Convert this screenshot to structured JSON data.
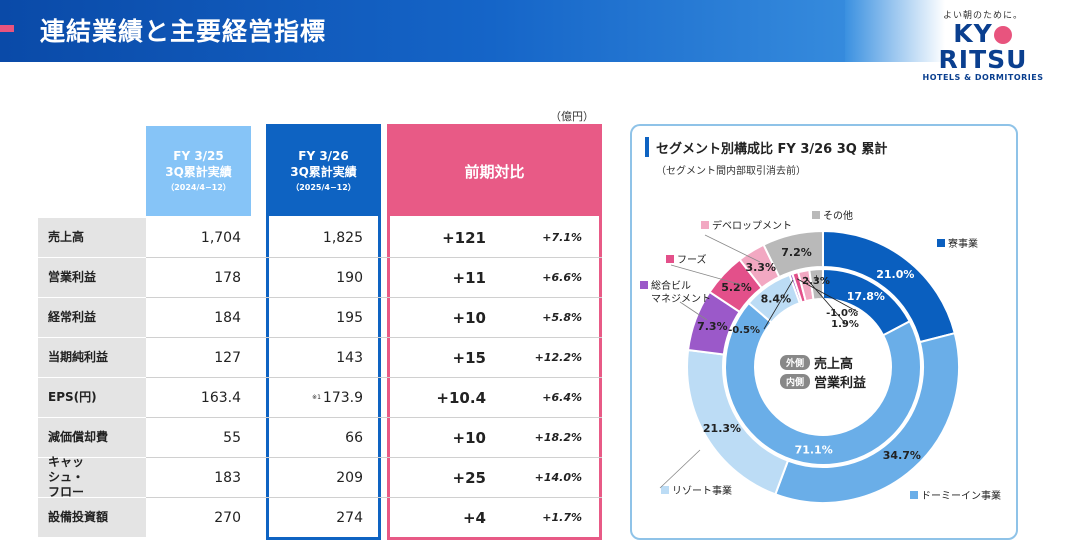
{
  "header": {
    "title": "連結業績と主要経営指標"
  },
  "logo": {
    "tagline": "よい朝のために。",
    "brand_pre": "KY",
    "brand_post": "RITSU",
    "sub": "HOTELS & DORMITORIES"
  },
  "unit": "（億円）",
  "columns": {
    "prev": {
      "l1": "FY 3/25",
      "l2": "3Q累計実績",
      "l3": "（2024/4−12）"
    },
    "cur": {
      "l1": "FY 3/26",
      "l2": "3Q累計実績",
      "l3": "（2025/4−12）"
    },
    "diff": {
      "l1": "前期対比"
    }
  },
  "rows": [
    {
      "label": "売上高",
      "prev": "1,704",
      "cur": "1,825",
      "diff": "+121",
      "pct": "+7.1%"
    },
    {
      "label": "営業利益",
      "prev": "178",
      "cur": "190",
      "diff": "+11",
      "pct": "+6.6%"
    },
    {
      "label": "経常利益",
      "prev": "184",
      "cur": "195",
      "diff": "+10",
      "pct": "+5.8%"
    },
    {
      "label": "当期純利益",
      "prev": "127",
      "cur": "143",
      "diff": "+15",
      "pct": "+12.2%"
    },
    {
      "label": "EPS(円)",
      "prev": "163.4",
      "cur": "173.9",
      "diff": "+10.4",
      "pct": "+6.4%"
    },
    {
      "label": "減価償却費",
      "prev": "55",
      "cur": "66",
      "diff": "+10",
      "pct": "+18.2%"
    },
    {
      "label": "キャッシュ・フロー",
      "prev": "183",
      "cur": "209",
      "diff": "+25",
      "pct": "+14.0%"
    },
    {
      "label": "設備投資額",
      "prev": "270",
      "cur": "274",
      "diff": "+4",
      "pct": "+1.7%"
    }
  ],
  "notes": {
    "eps": "※1",
    "cf": "※2"
  },
  "chart_data": {
    "type": "pie",
    "title": "セグメント別構成比 FY 3/26 3Q 累計",
    "subtitle": "（セグメント間内部取引消去前）",
    "center": {
      "outer_tag": "外側",
      "outer_label": "売上高",
      "inner_tag": "内側",
      "inner_label": "営業利益"
    },
    "outer_ring": {
      "name": "売上高",
      "segments": [
        {
          "name": "寮事業",
          "value": 21.0,
          "label": "21.0%",
          "color": "#0a5fbf"
        },
        {
          "name": "ドーミーイン事業",
          "value": 34.7,
          "label": "34.7%",
          "color": "#6aaee8"
        },
        {
          "name": "リゾート事業",
          "value": 21.3,
          "label": "21.3%",
          "color": "#bcdcf5"
        },
        {
          "name": "総合ビルマネジメント",
          "value": 7.3,
          "label": "7.3%",
          "color": "#9b59c9"
        },
        {
          "name": "フーズ",
          "value": 5.2,
          "label": "5.2%",
          "color": "#e3508a"
        },
        {
          "name": "デベロップメント",
          "value": 3.3,
          "label": "3.3%",
          "color": "#f2a8c2"
        },
        {
          "name": "その他",
          "value": 7.2,
          "label": "7.2%",
          "color": "#b9b9b9"
        }
      ]
    },
    "inner_ring": {
      "name": "営業利益",
      "segments": [
        {
          "name": "寮事業",
          "value": 17.8,
          "label": "17.8%",
          "color": "#0a5fbf"
        },
        {
          "name": "ドーミーイン事業",
          "value": 71.1,
          "label": "71.1%",
          "color": "#6aaee8"
        },
        {
          "name": "リゾート事業",
          "value": 8.4,
          "label": "8.4%",
          "color": "#bcdcf5"
        },
        {
          "name": "総合ビルマネジメント",
          "value": -0.5,
          "label": "-0.5%",
          "color": "#9b59c9"
        },
        {
          "name": "フーズ",
          "value": -1.0,
          "label": "-1.0%",
          "color": "#e3508a"
        },
        {
          "name": "デベロップメント",
          "value": 1.9,
          "label": "1.9%",
          "color": "#f2a8c2"
        },
        {
          "name": "その他",
          "value": 2.3,
          "label": "2.3%",
          "color": "#b9b9b9"
        }
      ]
    }
  }
}
